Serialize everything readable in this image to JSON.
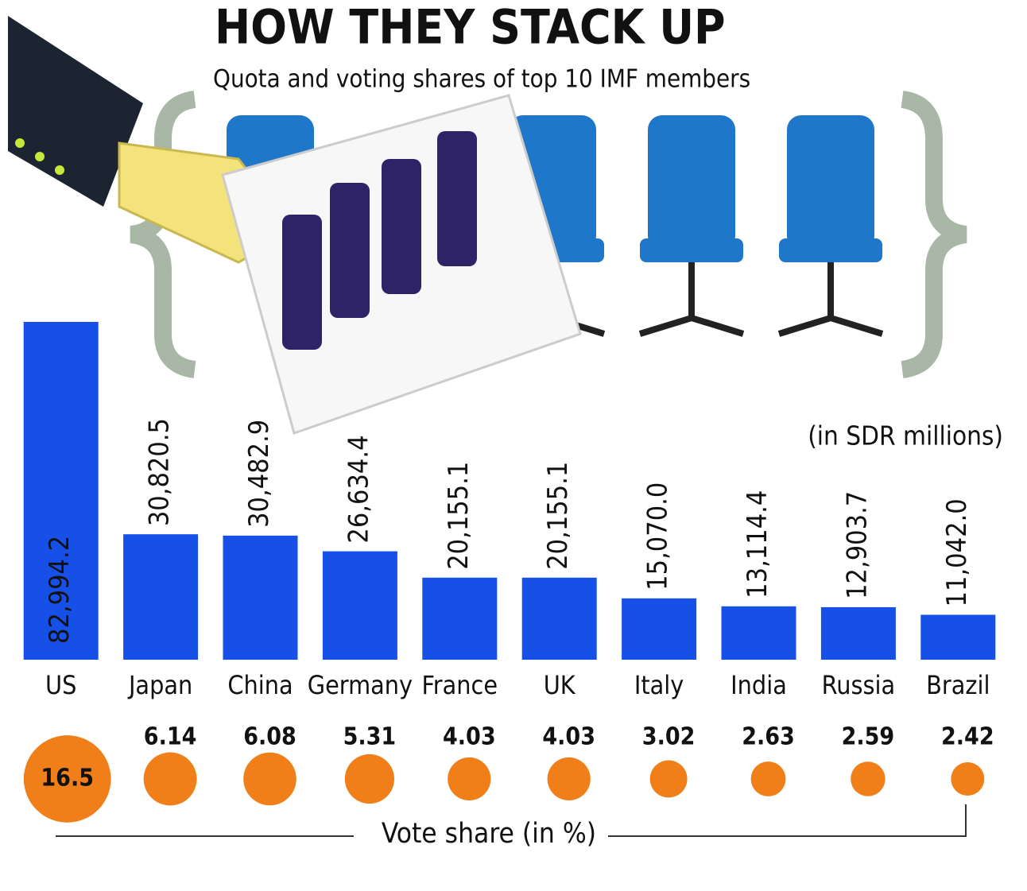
{
  "chart_data": [
    {
      "type": "bar",
      "title": "HOW THEY STACK UP",
      "subtitle": "Quota and voting shares of top 10 IMF members",
      "unit": "(in SDR millions)",
      "categories": [
        "US",
        "Japan",
        "China",
        "Germany",
        "France",
        "UK",
        "Italy",
        "India",
        "Russia",
        "Brazil"
      ],
      "values": [
        82994.2,
        30820.5,
        30482.9,
        26634.4,
        20155.1,
        20155.1,
        15070.0,
        13114.4,
        12903.7,
        11042.0
      ],
      "value_labels": [
        "82,994.2",
        "30,820.5",
        "30,482.9",
        "26,634.4",
        "20,155.1",
        "20,155.1",
        "15,070.0",
        "13,114.4",
        "12,903.7",
        "11,042.0"
      ],
      "color": "#1750e6"
    },
    {
      "type": "bubble",
      "label": "Vote share (in %)",
      "values": [
        16.5,
        6.14,
        6.08,
        5.31,
        4.03,
        4.03,
        3.02,
        2.63,
        2.59,
        2.42
      ],
      "color": "#f07f1a"
    }
  ]
}
